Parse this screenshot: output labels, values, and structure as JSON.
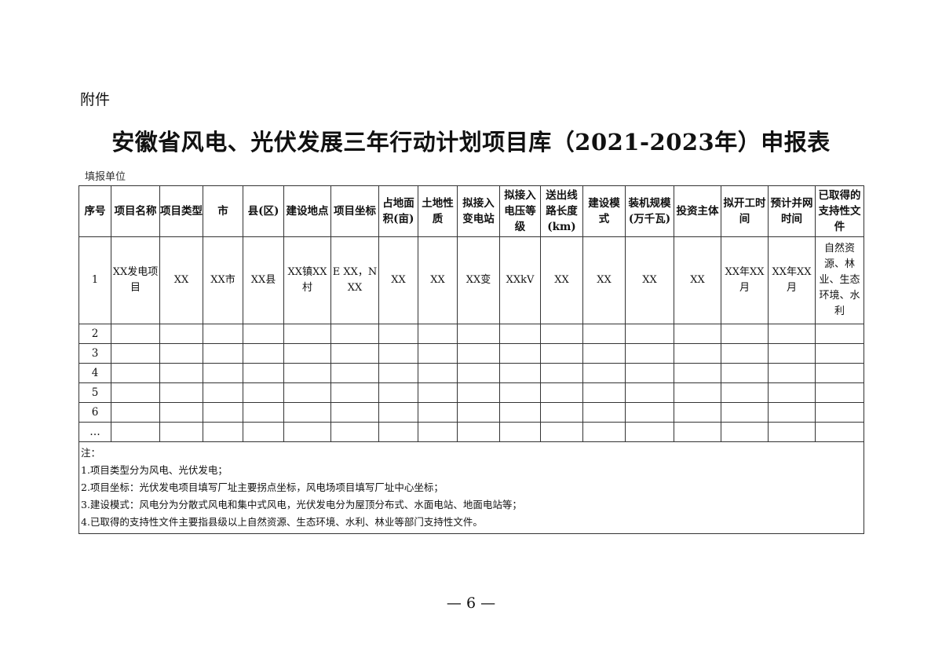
{
  "attachment_label": "附件",
  "title": "安徽省风电、光伏发展三年行动计划项目库（2021-2023年）申报表",
  "filing_unit_label": "填报单位",
  "table": {
    "headers": [
      "序号",
      "项目名称",
      "项目类型",
      "市",
      "县(区)",
      "建设地点",
      "项目坐标",
      "占地面积(亩)",
      "土地性质",
      "拟接入变电站",
      "拟接入电压等级",
      "送出线路长度(km)",
      "建设模式",
      "装机规模(万千瓦)",
      "投资主体",
      "拟开工时间",
      "预计并网时间",
      "已取得的支持性文件"
    ],
    "rows": [
      [
        "1",
        "XX发电项目",
        "XX",
        "XX市",
        "XX县",
        "XX镇XX村",
        "E XX，N XX",
        "XX",
        "XX",
        "XX变",
        "XXkV",
        "XX",
        "XX",
        "XX",
        "XX",
        "XX年XX月",
        "XX年XX月",
        "自然资源、林业、生态环境、水利"
      ],
      [
        "2"
      ],
      [
        "3"
      ],
      [
        "4"
      ],
      [
        "5"
      ],
      [
        "6"
      ],
      [
        "…"
      ]
    ]
  },
  "notes": {
    "heading": "注：",
    "items": [
      "1.项目类型分为风电、光伏发电；",
      "2.项目坐标：光伏发电项目填写厂址主要拐点坐标，风电场项目填写厂址中心坐标；",
      "3.建设模式：风电分为分散式风电和集中式风电，光伏发电分为屋顶分布式、水面电站、地面电站等；",
      "4.已取得的支持性文件主要指县级以上自然资源、生态环境、水利、林业等部门支持性文件。"
    ]
  },
  "page_number": "— 6 —"
}
